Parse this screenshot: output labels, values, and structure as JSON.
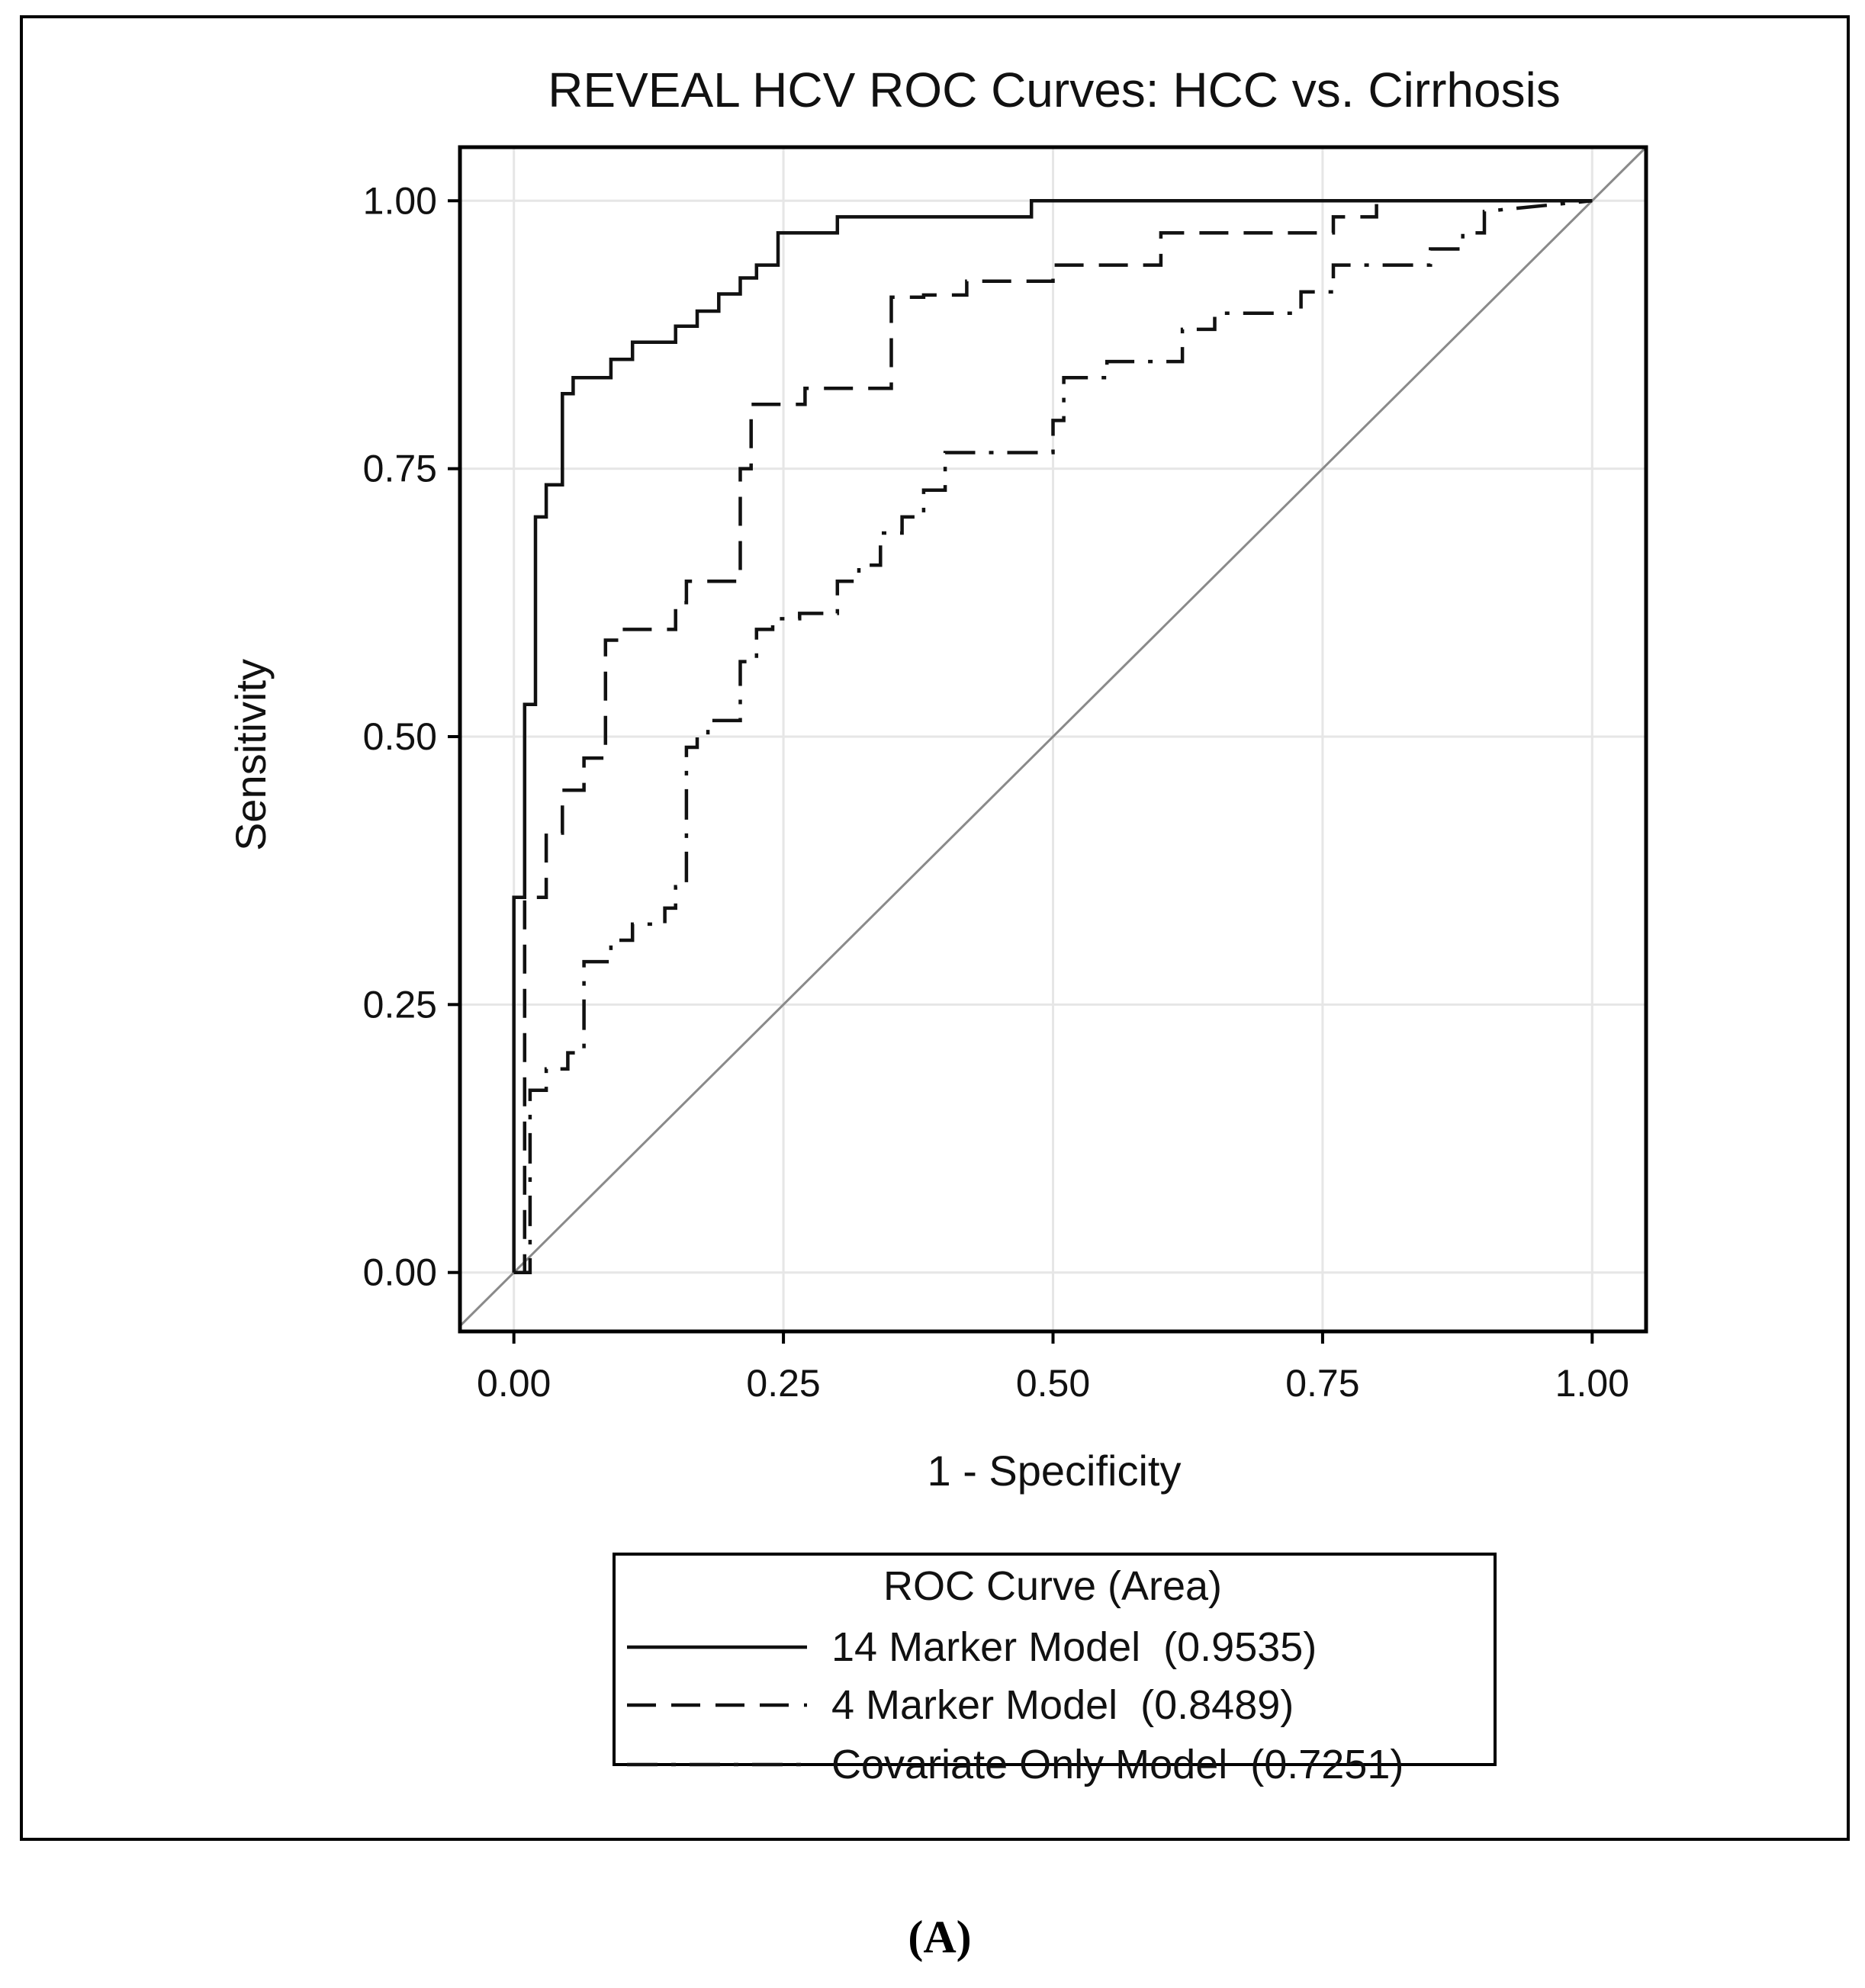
{
  "chart_data": {
    "type": "line",
    "title": "REVEAL HCV ROC Curves: HCC vs. Cirrhosis",
    "xlabel": "1 - Specificity",
    "ylabel": "Sensitivity",
    "xlim": [
      -0.05,
      1.05
    ],
    "ylim": [
      -0.055,
      1.05
    ],
    "xticks": [
      0,
      0.25,
      0.5,
      0.75,
      1
    ],
    "yticks": [
      0,
      0.25,
      0.5,
      0.75,
      1
    ],
    "xtick_labels": [
      "0.00",
      "0.25",
      "0.50",
      "0.75",
      "1.00"
    ],
    "ytick_labels": [
      "0.00",
      "0.25",
      "0.50",
      "0.75",
      "1.00"
    ],
    "grid": true,
    "reference_line": {
      "x": [
        0,
        1
      ],
      "y": [
        0,
        1
      ]
    },
    "legend": {
      "title": "ROC Curve (Area)",
      "position": "bottom"
    },
    "series": [
      {
        "name": "14 Marker Model  (0.9535)",
        "dash": "solid",
        "x": [
          0.0,
          0.0,
          0.01,
          0.01,
          0.02,
          0.02,
          0.03,
          0.03,
          0.045,
          0.045,
          0.055,
          0.055,
          0.09,
          0.09,
          0.11,
          0.11,
          0.15,
          0.15,
          0.17,
          0.17,
          0.19,
          0.19,
          0.21,
          0.21,
          0.225,
          0.225,
          0.245,
          0.245,
          0.3,
          0.3,
          0.48,
          0.48,
          1.0
        ],
        "y": [
          0.0,
          0.35,
          0.35,
          0.53,
          0.53,
          0.705,
          0.705,
          0.735,
          0.735,
          0.82,
          0.82,
          0.835,
          0.835,
          0.852,
          0.852,
          0.868,
          0.868,
          0.883,
          0.883,
          0.897,
          0.897,
          0.913,
          0.913,
          0.928,
          0.928,
          0.94,
          0.94,
          0.97,
          0.97,
          0.985,
          0.985,
          1.0,
          1.0
        ]
      },
      {
        "name": "4 Marker Model  (0.8489)",
        "dash": "dashed",
        "x": [
          0.0,
          0.01,
          0.01,
          0.03,
          0.03,
          0.045,
          0.045,
          0.065,
          0.065,
          0.085,
          0.085,
          0.1,
          0.1,
          0.15,
          0.15,
          0.16,
          0.16,
          0.21,
          0.21,
          0.22,
          0.22,
          0.27,
          0.27,
          0.35,
          0.35,
          0.38,
          0.38,
          0.42,
          0.42,
          0.5,
          0.5,
          0.6,
          0.6,
          0.76,
          0.76,
          0.8,
          0.8,
          1.0
        ],
        "y": [
          0.0,
          0.0,
          0.35,
          0.35,
          0.41,
          0.41,
          0.45,
          0.45,
          0.48,
          0.48,
          0.59,
          0.59,
          0.6,
          0.6,
          0.625,
          0.625,
          0.645,
          0.645,
          0.75,
          0.75,
          0.81,
          0.81,
          0.825,
          0.825,
          0.91,
          0.91,
          0.912,
          0.912,
          0.925,
          0.925,
          0.94,
          0.94,
          0.97,
          0.97,
          0.985,
          0.985,
          1.0,
          1.0
        ]
      },
      {
        "name": "Covariate Only Model  (0.7251)",
        "dash": "dashdot",
        "x": [
          0.0,
          0.015,
          0.015,
          0.03,
          0.03,
          0.05,
          0.05,
          0.065,
          0.065,
          0.09,
          0.09,
          0.11,
          0.11,
          0.14,
          0.14,
          0.15,
          0.15,
          0.16,
          0.16,
          0.17,
          0.17,
          0.18,
          0.18,
          0.21,
          0.21,
          0.225,
          0.225,
          0.24,
          0.24,
          0.265,
          0.265,
          0.3,
          0.3,
          0.32,
          0.32,
          0.34,
          0.34,
          0.36,
          0.36,
          0.38,
          0.38,
          0.4,
          0.4,
          0.5,
          0.5,
          0.51,
          0.51,
          0.55,
          0.55,
          0.62,
          0.62,
          0.65,
          0.65,
          0.73,
          0.73,
          0.76,
          0.76,
          0.85,
          0.85,
          0.88,
          0.88,
          0.9,
          0.9,
          1.0
        ],
        "y": [
          0.0,
          0.0,
          0.17,
          0.17,
          0.19,
          0.19,
          0.205,
          0.205,
          0.29,
          0.29,
          0.31,
          0.31,
          0.325,
          0.325,
          0.34,
          0.34,
          0.36,
          0.36,
          0.49,
          0.49,
          0.5,
          0.5,
          0.515,
          0.515,
          0.57,
          0.57,
          0.6,
          0.6,
          0.61,
          0.61,
          0.615,
          0.615,
          0.645,
          0.645,
          0.66,
          0.66,
          0.69,
          0.69,
          0.705,
          0.705,
          0.73,
          0.73,
          0.765,
          0.765,
          0.795,
          0.795,
          0.835,
          0.835,
          0.85,
          0.85,
          0.88,
          0.88,
          0.895,
          0.895,
          0.915,
          0.915,
          0.94,
          0.94,
          0.955,
          0.955,
          0.97,
          0.97,
          0.99,
          1.0
        ]
      }
    ]
  },
  "caption": "(A)"
}
